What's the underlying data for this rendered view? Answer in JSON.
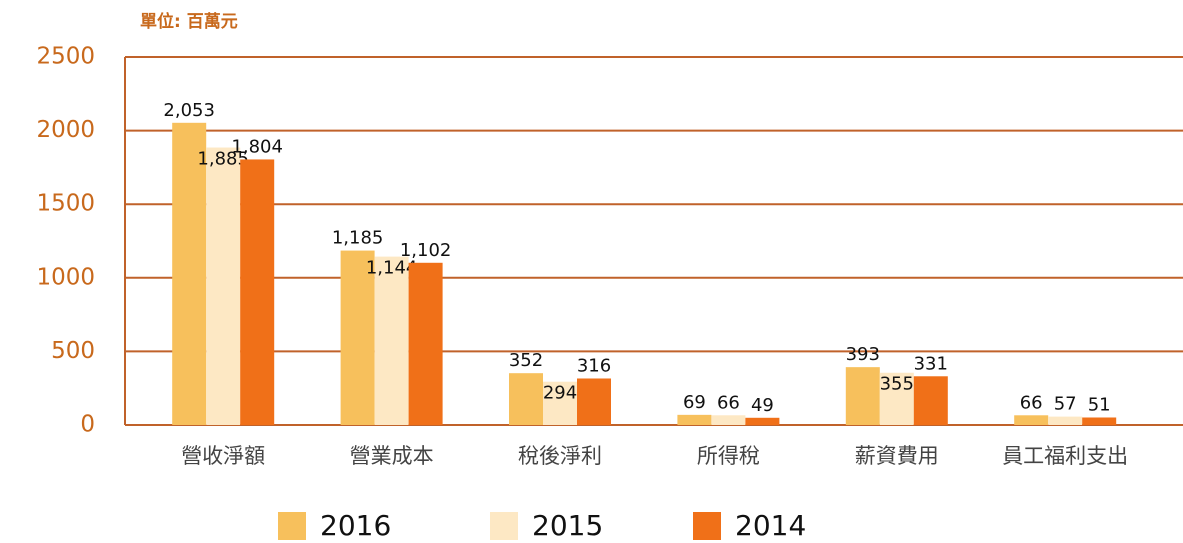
{
  "chart_data": {
    "type": "bar",
    "unit": "單位: 百萬元",
    "categories": [
      "營收淨額",
      "營業成本",
      "稅後淨利",
      "所得稅",
      "薪資費用",
      "員工福利支出"
    ],
    "series": [
      {
        "name": "2016",
        "color": "#f7c05c",
        "values": [
          2053,
          1185,
          352,
          69,
          393,
          66
        ],
        "value_labels": [
          "2,053",
          "1,185",
          "352",
          "69",
          "393",
          "66"
        ]
      },
      {
        "name": "2015",
        "color": "#fde8c4",
        "values": [
          1885,
          1144,
          294,
          66,
          355,
          57
        ],
        "value_labels": [
          "1,885",
          "1,144",
          "294",
          "66",
          "355",
          "57"
        ]
      },
      {
        "name": "2014",
        "color": "#f07018",
        "values": [
          1804,
          1102,
          316,
          49,
          331,
          51
        ],
        "value_labels": [
          "1,804",
          "1,102",
          "316",
          "49",
          "331",
          "51"
        ]
      }
    ],
    "ylim": [
      0,
      2500
    ],
    "yticks": [
      0,
      500,
      1000,
      1500,
      2000,
      2500
    ],
    "grid": true,
    "legend": "bottom"
  }
}
